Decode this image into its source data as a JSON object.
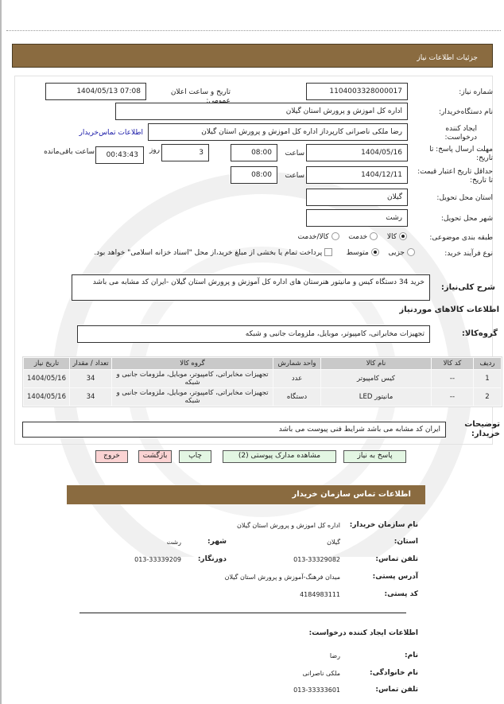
{
  "header": {
    "title": "جزئیات اطلاعات نیاز"
  },
  "form": {
    "need_number_label": "شماره نیاز:",
    "need_number": "1104003328000017",
    "announce_label": "تاریخ و ساعت اعلان عمومی:",
    "announce_value": "1404/05/13 07:08",
    "buyer_label": "نام دستگاه‌خریدار:",
    "buyer_value": "اداره کل اموزش و پرورش استان گیلان",
    "creator_label": "ایجاد کننده درخواست:",
    "creator_value": "رضا ملکی ناصرانی کارپرداز اداره کل اموزش و پرورش استان گیلان",
    "contact_link": "اطلاعات تماس‌خریدار",
    "deadline_label": "مهلت ارسال پاسخ: تا تاریخ:",
    "deadline_date": "1404/05/16",
    "time_label": "ساعت",
    "deadline_time": "08:00",
    "days_value": "3",
    "days_label": "روز",
    "remaining_value": "00:43:43",
    "remaining_label": "ساعت باقی‌مانده",
    "validity_label": "حداقل تاریخ اعتبار قیمت: تا تاریخ:",
    "validity_date": "1404/12/11",
    "validity_time": "08:00",
    "province_label": "استان محل تحویل:",
    "province_value": "گیلان",
    "city_label": "شهر محل تحویل:",
    "city_value": "رشت",
    "category_label": "طبقه بندی موضوعی:",
    "category_options": [
      "کالا",
      "خدمت",
      "کالا/خدمت"
    ],
    "category_selected": "کالا",
    "process_label": "نوع فرآیند خرید:",
    "process_options": [
      "جزیی",
      "متوسط"
    ],
    "process_selected": "متوسط",
    "treasury_note": "پرداخت تمام یا بخشی از مبلغ خرید،از محل \"اسناد خزانه اسلامی\" خواهد بود.",
    "description_label": "شرح کلی‌نیاز:",
    "description_value": "خرید 34 دستگاه کیس و مانیتور هنرستان های اداره کل آموزش و پرورش استان گیلان -ایران کد مشابه می باشد",
    "items_heading": "اطلاعات کالاهای موردنیاز",
    "group_label": "گروه‌کالا:",
    "group_value": "تجهیزات مخابراتی، کامپیوتر، موبایل، ملزومات جانبی و شبکه",
    "notes_label": "توضیحات خریدار:",
    "notes_value": "ایران کد مشابه می باشد شرایط فنی پیوست می باشد"
  },
  "table": {
    "headers": [
      "ردیف",
      "کد کالا",
      "نام کالا",
      "واحد شمارش",
      "گروه کالا",
      "تعداد / مقدار",
      "تاریخ نیاز"
    ],
    "rows": [
      [
        "1",
        "--",
        "کیس کامپیوتر",
        "عدد",
        "تجهیزات مخابراتی، کامپیوتر، موبایل، ملزومات جانبی و شبکه",
        "34",
        "1404/05/16"
      ],
      [
        "2",
        "--",
        "مانیتور LED",
        "دستگاه",
        "تجهیزات مخابراتی، کامپیوتر، موبایل، ملزومات جانبی و شبکه",
        "34",
        "1404/05/16"
      ]
    ]
  },
  "buttons": {
    "reply": "پاسخ به نیاز",
    "attachments": "مشاهده مدارک پیوستی (2)",
    "print": "چاپ",
    "back": "بازگشت",
    "exit": "خروج"
  },
  "contact": {
    "title": "اطلاعات تماس سازمان خریدار",
    "org_label": "نام سازمان خریدار:",
    "org_value": "اداره کل اموزش و پرورش استان گیلان",
    "province_label": "استان:",
    "province_value": "گیلان",
    "city_label": "شهر:",
    "city_value": "رشت",
    "phone_label": "تلفن تماس:",
    "phone_value": "013-33329082",
    "fax_label": "دورنگار:",
    "fax_value": "013-33339209",
    "address_label": "آدرس پستی:",
    "address_value": "میدان فرهنگ-آموزش و پرورش استان گیلان",
    "postal_label": "کد پستی:",
    "postal_value": "4184983111",
    "creator_heading": "اطلاعات ایجاد کننده درخواست:",
    "name_label": "نام:",
    "name_value": "رضا",
    "family_label": "نام خانوادگی:",
    "family_value": "ملکی ناصرانی",
    "cphone_label": "تلفن تماس:",
    "cphone_value": "013-33333601"
  },
  "colors": {
    "header_brown": "#8a6b40",
    "link_blue": "#1a1aa8",
    "green_button": "#e3f6e3",
    "red_button": "#fbd3d3"
  }
}
